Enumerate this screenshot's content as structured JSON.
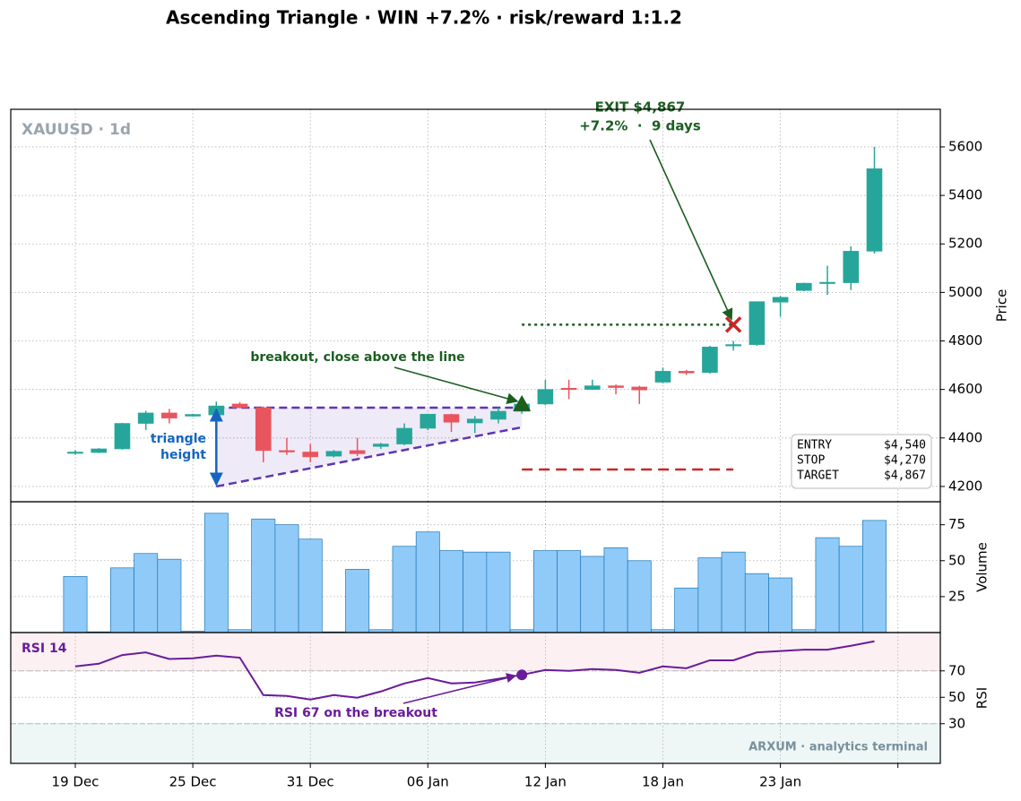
{
  "chart_data": [
    {
      "type": "candlestick",
      "title": "Ascending Triangle · WIN +7.2% · risk/reward 1:1.2",
      "label": "XAUUSD · 1d",
      "ylabel": "Price",
      "categories": [
        "19 Dec",
        null,
        null,
        null,
        null,
        "25 Dec",
        null,
        null,
        null,
        null,
        "31 Dec",
        null,
        null,
        null,
        null,
        "06 Jan",
        null,
        null,
        null,
        null,
        "12 Jan",
        null,
        null,
        null,
        null,
        "18 Jan",
        null,
        null,
        null,
        null,
        "23 Jan",
        null,
        null,
        null,
        null
      ],
      "open": [
        4338,
        4340,
        4355,
        4460,
        4503,
        4490,
        4495,
        4540,
        4525,
        4348,
        4342,
        4325,
        4348,
        4365,
        4375,
        4440,
        4497,
        4462,
        4477,
        4510,
        4540,
        4605,
        4600,
        4615,
        4610,
        4630,
        4675,
        4670,
        4780,
        4785,
        4960,
        5008,
        5038,
        5040,
        5170
      ],
      "high": [
        4350,
        4358,
        4462,
        4512,
        4520,
        4500,
        4550,
        4548,
        4530,
        4400,
        4375,
        4350,
        4400,
        4380,
        4460,
        4500,
        4500,
        4490,
        4525,
        4548,
        4640,
        4640,
        4640,
        4620,
        4615,
        4690,
        4680,
        4780,
        4800,
        4962,
        4985,
        5040,
        5110,
        5190,
        5600
      ],
      "low": [
        4330,
        4338,
        4352,
        4433,
        4460,
        4488,
        4490,
        4522,
        4300,
        4330,
        4300,
        4320,
        4325,
        4355,
        4370,
        4432,
        4425,
        4420,
        4460,
        4500,
        4535,
        4560,
        4598,
        4580,
        4540,
        4625,
        4660,
        4665,
        4760,
        4780,
        4900,
        5005,
        4990,
        5010,
        5160
      ],
      "close": [
        4342,
        4355,
        4460,
        4503,
        4482,
        4497,
        4532,
        4525,
        4348,
        4342,
        4322,
        4345,
        4335,
        4375,
        4440,
        4498,
        4465,
        4478,
        4510,
        4540,
        4600,
        4600,
        4615,
        4608,
        4598,
        4675,
        4668,
        4775,
        4785,
        4962,
        4980,
        5038,
        5042,
        5170,
        5510
      ],
      "up_color": "#26a69a",
      "down_color": "#e8555f",
      "ylim": [
        4137,
        5755
      ],
      "yticks": [
        4200,
        4400,
        4600,
        4800,
        5000,
        5200,
        5400,
        5600
      ],
      "grid": true,
      "triangle": {
        "resistance": 4525,
        "support": [
          4200,
          4444
        ],
        "label": "triangle height",
        "color": "#5e35b1"
      },
      "breakout_label": "breakout, close above the line",
      "levels": [
        {
          "name": "ENTRY",
          "value": 4540,
          "label": "$4,540",
          "color": "#1b5e20"
        },
        {
          "name": "STOP",
          "value": 4270,
          "label": "$4,270",
          "color": "#c62828"
        },
        {
          "name": "TARGET",
          "value": 4867,
          "label": "$4,867",
          "color": "#1b5e20"
        }
      ],
      "exit": {
        "text": "EXIT $4,867",
        "detail": "+7.2%  ·  9 days",
        "days": 9,
        "color": "#c62828"
      }
    },
    {
      "type": "bar",
      "ylabel": "Volume",
      "values": [
        39,
        0.5,
        45,
        55,
        51,
        1,
        83,
        2,
        79,
        75,
        65,
        0.5,
        44,
        2,
        60,
        70,
        57,
        56,
        56,
        2,
        57,
        57,
        53,
        59,
        50,
        2,
        31,
        52,
        56,
        41,
        38,
        2,
        66,
        60,
        78
      ],
      "color": "#90caf9",
      "edgecolor": "#1f77b4",
      "ylim": [
        0,
        91
      ],
      "yticks": [
        25,
        50,
        75
      ],
      "grid": true
    },
    {
      "type": "line",
      "label": "RSI 14",
      "ylabel": "RSI",
      "values": [
        73.4,
        75.4,
        82,
        84,
        79,
        79.5,
        81.5,
        80,
        51.7,
        51,
        48.3,
        51.7,
        49.7,
        54.4,
        60.5,
        64.6,
        60.5,
        61.2,
        64,
        67,
        70.7,
        70,
        71.4,
        70.7,
        68.6,
        73.4,
        72,
        78,
        78,
        84,
        85,
        86,
        86,
        89,
        92.4
      ],
      "color": "#6a1b9a",
      "ylim": [
        0,
        99
      ],
      "yticks": [
        30,
        50,
        70
      ],
      "grid": true,
      "overbought": 70,
      "oversold": 30,
      "annotation": "RSI 67 on the breakout",
      "watermark": "ARXUM · analytics terminal"
    }
  ]
}
